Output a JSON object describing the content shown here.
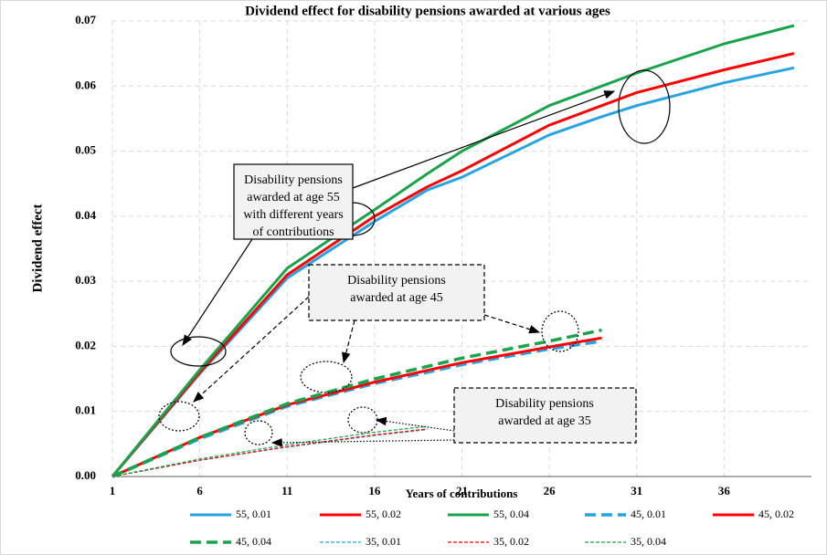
{
  "chart_data": {
    "type": "line",
    "title": "Dividend effect for  disability pensions awarded at various ages",
    "xlabel": "Years of contributions",
    "ylabel": "Dividend effect",
    "x": [
      1,
      6,
      11,
      16,
      19,
      21,
      26,
      29,
      31,
      36,
      40
    ],
    "xlim": [
      1,
      41
    ],
    "xticks": [
      1,
      6,
      11,
      16,
      21,
      26,
      31,
      36
    ],
    "ylim": [
      0,
      0.07
    ],
    "yticks": [
      {
        "value": 0,
        "label": "0.00"
      },
      0.01,
      0.02,
      0.03,
      0.04,
      0.05,
      0.06,
      0.07
    ],
    "grid": true,
    "series": [
      {
        "name": "55, 0.01",
        "color": "#29a3e0",
        "line_style": "solid",
        "values": [
          0,
          0.0158,
          0.0305,
          0.0392,
          0.044,
          0.046,
          0.0525,
          0.0553,
          0.057,
          0.0605,
          0.0628
        ]
      },
      {
        "name": "55, 0.02",
        "color": "#ff0000",
        "line_style": "solid",
        "values": [
          0,
          0.016,
          0.031,
          0.04,
          0.0445,
          0.047,
          0.054,
          0.057,
          0.059,
          0.0625,
          0.065
        ]
      },
      {
        "name": "55, 0.04",
        "color": "#1aa34a",
        "line_style": "solid",
        "values": [
          0,
          0.0164,
          0.032,
          0.041,
          0.0465,
          0.05,
          0.057,
          0.06,
          0.062,
          0.0665,
          0.0693
        ]
      },
      {
        "name": "45, 0.01",
        "color": "#29a3e0",
        "line_style": "dashed",
        "values": [
          0,
          0.0058,
          0.0108,
          0.0143,
          0.016,
          0.0172,
          0.0196,
          0.0208,
          null,
          null,
          null
        ]
      },
      {
        "name": "45, 0.02",
        "color": "#ff0000",
        "line_style": "solid",
        "values": [
          0,
          0.006,
          0.011,
          0.0145,
          0.0163,
          0.0175,
          0.0199,
          0.0213,
          null,
          null,
          null
        ]
      },
      {
        "name": "45, 0.04",
        "color": "#1aa34a",
        "line_style": "dashed",
        "values": [
          0,
          0.006,
          0.0112,
          0.015,
          0.0169,
          0.0182,
          0.0208,
          0.0225,
          null,
          null,
          null
        ]
      },
      {
        "name": "35, 0.01",
        "color": "#29a3e0",
        "line_style": "thin-dashed",
        "values": [
          0,
          0.0025,
          0.0045,
          0.0063,
          0.0072,
          null,
          null,
          null,
          null,
          null,
          null
        ]
      },
      {
        "name": "35, 0.02",
        "color": "#ff0000",
        "line_style": "thin-dashed",
        "values": [
          0,
          0.0025,
          0.0046,
          0.0064,
          0.0073,
          null,
          null,
          null,
          null,
          null,
          null
        ]
      },
      {
        "name": "35, 0.04",
        "color": "#1aa34a",
        "line_style": "thin-dashed",
        "values": [
          0,
          0.0027,
          0.0049,
          0.0068,
          0.0077,
          null,
          null,
          null,
          null,
          null,
          null
        ]
      }
    ],
    "annotations": [
      [
        "Disability pensions",
        "awarded at age 55",
        "with different years",
        "of contributions"
      ],
      [
        "Disability pensions",
        "awarded at age 45"
      ],
      [
        "Disability pensions",
        "awarded at age 35"
      ]
    ]
  }
}
